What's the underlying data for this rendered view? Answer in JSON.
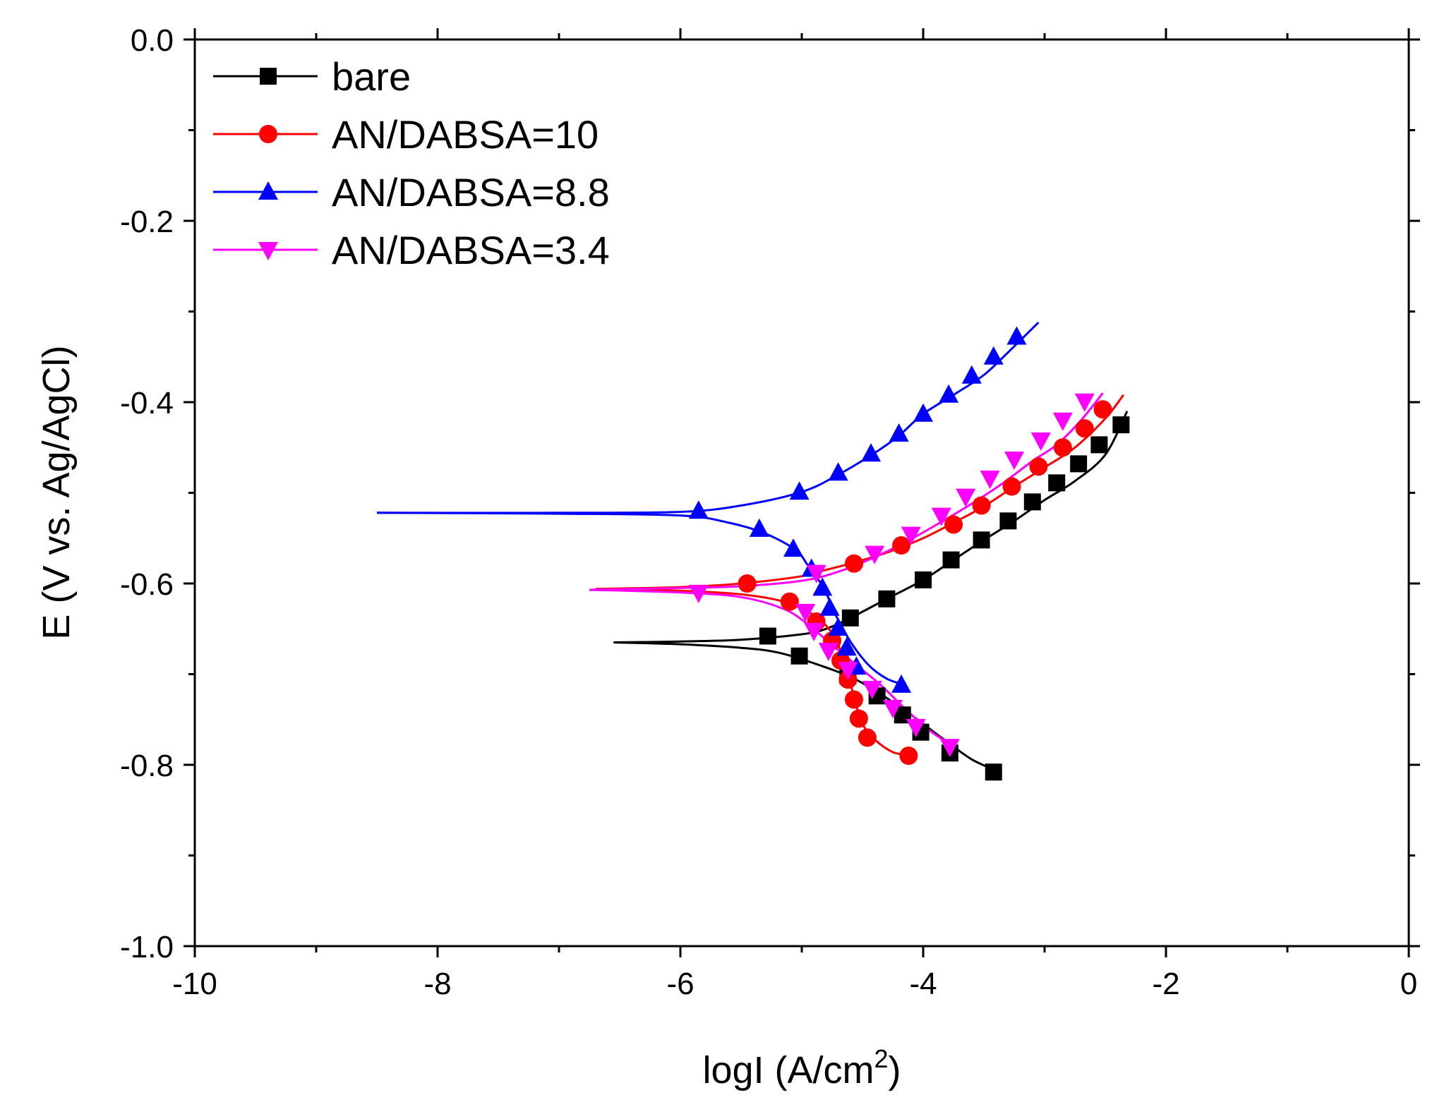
{
  "chart_data": {
    "type": "line",
    "title": "",
    "xlabel": "logI (A/cm",
    "xlabel_sup": "2",
    "xlabel_end": ")",
    "ylabel": "E (V vs. Ag/AgCl)",
    "xlim": [
      -10,
      0
    ],
    "ylim": [
      -1.0,
      0.0
    ],
    "x_ticks": [
      -10,
      -8,
      -6,
      -4,
      -2,
      0
    ],
    "x_tick_labels": [
      "-10",
      "-8",
      "-6",
      "-4",
      "-2",
      "0"
    ],
    "y_ticks": [
      0.0,
      -0.2,
      -0.4,
      -0.6,
      -0.8,
      -1.0
    ],
    "y_tick_labels": [
      "0.0",
      "-0.2",
      "-0.4",
      "-0.6",
      "-0.8",
      "-1.0"
    ],
    "x_minor_ticks": [
      -9,
      -7,
      -5,
      -3,
      -1
    ],
    "y_minor_ticks": [
      -0.1,
      -0.3,
      -0.5,
      -0.7,
      -0.9
    ],
    "grid": false,
    "legend_position": "top-left",
    "series": [
      {
        "name": "bare",
        "color": "#000000",
        "marker": "square",
        "ecorr": -0.665,
        "curve_anodic": [
          [
            -6.55,
            -0.665
          ],
          [
            -6.0,
            -0.664
          ],
          [
            -5.5,
            -0.662
          ],
          [
            -5.0,
            -0.656
          ],
          [
            -4.8,
            -0.65
          ],
          [
            -4.6,
            -0.638
          ],
          [
            -4.3,
            -0.617
          ],
          [
            -4.0,
            -0.596
          ],
          [
            -3.75,
            -0.574
          ],
          [
            -3.5,
            -0.552
          ],
          [
            -3.25,
            -0.531
          ],
          [
            -3.0,
            -0.508
          ],
          [
            -2.75,
            -0.487
          ],
          [
            -2.5,
            -0.458
          ],
          [
            -2.32,
            -0.41
          ]
        ],
        "curve_cathodic": [
          [
            -6.55,
            -0.665
          ],
          [
            -6.0,
            -0.667
          ],
          [
            -5.5,
            -0.671
          ],
          [
            -5.2,
            -0.676
          ],
          [
            -4.9,
            -0.688
          ],
          [
            -4.6,
            -0.703
          ],
          [
            -4.35,
            -0.722
          ],
          [
            -4.1,
            -0.745
          ],
          [
            -3.85,
            -0.77
          ],
          [
            -3.6,
            -0.794
          ],
          [
            -3.4,
            -0.806
          ]
        ],
        "anodic_points": [
          [
            -5.28,
            -0.658
          ],
          [
            -4.6,
            -0.638
          ],
          [
            -4.3,
            -0.617
          ],
          [
            -4.0,
            -0.596
          ],
          [
            -3.77,
            -0.574
          ],
          [
            -3.52,
            -0.552
          ],
          [
            -3.3,
            -0.531
          ],
          [
            -3.1,
            -0.51
          ],
          [
            -2.9,
            -0.489
          ],
          [
            -2.72,
            -0.468
          ],
          [
            -2.55,
            -0.447
          ],
          [
            -2.37,
            -0.425
          ]
        ],
        "cathodic_points": [
          [
            -5.02,
            -0.68
          ],
          [
            -4.62,
            -0.702
          ],
          [
            -4.38,
            -0.724
          ],
          [
            -4.17,
            -0.745
          ],
          [
            -4.02,
            -0.764
          ],
          [
            -3.78,
            -0.787
          ],
          [
            -3.42,
            -0.808
          ]
        ]
      },
      {
        "name": "AN/DABSA=10",
        "color": "#ff0000",
        "marker": "circle",
        "ecorr": -0.605,
        "curve_anodic": [
          [
            -6.7,
            -0.606
          ],
          [
            -6.0,
            -0.604
          ],
          [
            -5.5,
            -0.6
          ],
          [
            -5.0,
            -0.592
          ],
          [
            -4.8,
            -0.585
          ],
          [
            -4.6,
            -0.578
          ],
          [
            -4.3,
            -0.566
          ],
          [
            -4.0,
            -0.55
          ],
          [
            -3.75,
            -0.533
          ],
          [
            -3.5,
            -0.515
          ],
          [
            -3.25,
            -0.493
          ],
          [
            -3.0,
            -0.472
          ],
          [
            -2.75,
            -0.45
          ],
          [
            -2.5,
            -0.418
          ],
          [
            -2.35,
            -0.392
          ]
        ],
        "curve_cathodic": [
          [
            -6.7,
            -0.606
          ],
          [
            -6.0,
            -0.608
          ],
          [
            -5.5,
            -0.612
          ],
          [
            -5.15,
            -0.62
          ],
          [
            -4.9,
            -0.635
          ],
          [
            -4.75,
            -0.655
          ],
          [
            -4.65,
            -0.685
          ],
          [
            -4.6,
            -0.71
          ],
          [
            -4.55,
            -0.735
          ],
          [
            -4.5,
            -0.755
          ],
          [
            -4.4,
            -0.772
          ],
          [
            -4.25,
            -0.786
          ],
          [
            -4.1,
            -0.79
          ]
        ],
        "anodic_points": [
          [
            -5.45,
            -0.6
          ],
          [
            -4.57,
            -0.578
          ],
          [
            -4.18,
            -0.558
          ],
          [
            -3.75,
            -0.535
          ],
          [
            -3.52,
            -0.514
          ],
          [
            -3.27,
            -0.493
          ],
          [
            -3.05,
            -0.471
          ],
          [
            -2.85,
            -0.45
          ],
          [
            -2.67,
            -0.429
          ],
          [
            -2.52,
            -0.408
          ]
        ],
        "cathodic_points": [
          [
            -5.1,
            -0.62
          ],
          [
            -4.88,
            -0.642
          ],
          [
            -4.75,
            -0.663
          ],
          [
            -4.68,
            -0.685
          ],
          [
            -4.62,
            -0.706
          ],
          [
            -4.57,
            -0.728
          ],
          [
            -4.53,
            -0.749
          ],
          [
            -4.46,
            -0.77
          ],
          [
            -4.12,
            -0.79
          ]
        ]
      },
      {
        "name": "AN/DABSA=8.8",
        "color": "#0000ff",
        "marker": "triangle-up",
        "ecorr": -0.522,
        "curve_anodic": [
          [
            -8.5,
            -0.522
          ],
          [
            -7.0,
            -0.522
          ],
          [
            -6.0,
            -0.521
          ],
          [
            -5.5,
            -0.514
          ],
          [
            -5.0,
            -0.499
          ],
          [
            -4.7,
            -0.48
          ],
          [
            -4.4,
            -0.456
          ],
          [
            -4.2,
            -0.437
          ],
          [
            -4.0,
            -0.413
          ],
          [
            -3.75,
            -0.392
          ],
          [
            -3.5,
            -0.37
          ],
          [
            -3.3,
            -0.345
          ],
          [
            -3.05,
            -0.312
          ]
        ],
        "curve_cathodic": [
          [
            -8.5,
            -0.522
          ],
          [
            -7.0,
            -0.523
          ],
          [
            -6.0,
            -0.525
          ],
          [
            -5.6,
            -0.533
          ],
          [
            -5.3,
            -0.545
          ],
          [
            -5.05,
            -0.563
          ],
          [
            -4.95,
            -0.58
          ],
          [
            -4.82,
            -0.605
          ],
          [
            -4.72,
            -0.635
          ],
          [
            -4.6,
            -0.664
          ],
          [
            -4.45,
            -0.69
          ],
          [
            -4.3,
            -0.705
          ],
          [
            -4.15,
            -0.712
          ]
        ],
        "anodic_points": [
          [
            -5.85,
            -0.52
          ],
          [
            -5.02,
            -0.499
          ],
          [
            -4.7,
            -0.478
          ],
          [
            -4.43,
            -0.457
          ],
          [
            -4.2,
            -0.435
          ],
          [
            -4.0,
            -0.413
          ],
          [
            -3.79,
            -0.392
          ],
          [
            -3.6,
            -0.371
          ],
          [
            -3.42,
            -0.35
          ],
          [
            -3.23,
            -0.328
          ]
        ],
        "cathodic_points": [
          [
            -5.35,
            -0.54
          ],
          [
            -5.07,
            -0.562
          ],
          [
            -4.92,
            -0.584
          ],
          [
            -4.83,
            -0.605
          ],
          [
            -4.77,
            -0.627
          ],
          [
            -4.7,
            -0.649
          ],
          [
            -4.63,
            -0.671
          ],
          [
            -4.55,
            -0.692
          ],
          [
            -4.18,
            -0.712
          ]
        ]
      },
      {
        "name": "AN/DABSA=3.4",
        "color": "#ff00ff",
        "marker": "triangle-down",
        "ecorr": -0.606,
        "curve_anodic": [
          [
            -6.75,
            -0.607
          ],
          [
            -6.0,
            -0.605
          ],
          [
            -5.5,
            -0.603
          ],
          [
            -5.0,
            -0.597
          ],
          [
            -4.7,
            -0.587
          ],
          [
            -4.4,
            -0.571
          ],
          [
            -4.1,
            -0.551
          ],
          [
            -3.85,
            -0.532
          ],
          [
            -3.6,
            -0.512
          ],
          [
            -3.35,
            -0.49
          ],
          [
            -3.1,
            -0.465
          ],
          [
            -2.9,
            -0.447
          ],
          [
            -2.7,
            -0.42
          ],
          [
            -2.52,
            -0.39
          ]
        ],
        "curve_cathodic": [
          [
            -6.75,
            -0.607
          ],
          [
            -6.0,
            -0.61
          ],
          [
            -5.5,
            -0.615
          ],
          [
            -5.15,
            -0.628
          ],
          [
            -4.95,
            -0.645
          ],
          [
            -4.75,
            -0.668
          ],
          [
            -4.55,
            -0.69
          ],
          [
            -4.35,
            -0.712
          ],
          [
            -4.15,
            -0.738
          ],
          [
            -3.95,
            -0.762
          ],
          [
            -3.72,
            -0.782
          ]
        ],
        "anodic_points": [
          [
            -4.88,
            -0.588
          ],
          [
            -4.4,
            -0.567
          ],
          [
            -4.1,
            -0.546
          ],
          [
            -3.85,
            -0.525
          ],
          [
            -3.65,
            -0.504
          ],
          [
            -3.45,
            -0.484
          ],
          [
            -3.25,
            -0.463
          ],
          [
            -3.03,
            -0.442
          ],
          [
            -2.85,
            -0.42
          ],
          [
            -2.67,
            -0.399
          ]
        ],
        "cathodic_points": [
          [
            -5.85,
            -0.61
          ],
          [
            -4.97,
            -0.631
          ],
          [
            -4.9,
            -0.652
          ],
          [
            -4.78,
            -0.674
          ],
          [
            -4.62,
            -0.695
          ],
          [
            -4.42,
            -0.716
          ],
          [
            -4.25,
            -0.737
          ],
          [
            -4.06,
            -0.758
          ],
          [
            -3.78,
            -0.78
          ]
        ]
      }
    ]
  }
}
